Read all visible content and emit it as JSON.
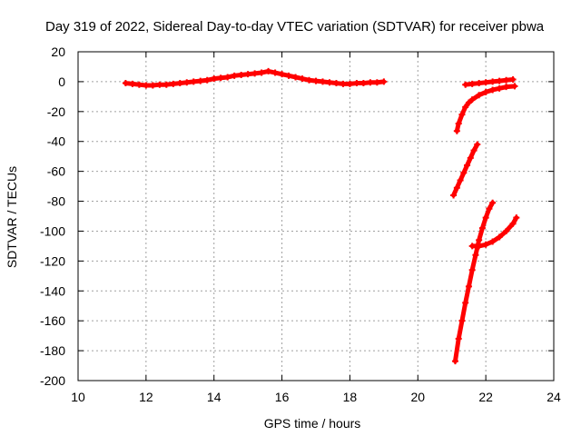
{
  "chart_data": {
    "type": "scatter",
    "title": "Day 319 of 2022, Sidereal Day-to-day VTEC variation (SDTVAR) for receiver pbwa",
    "xlabel": "GPS time / hours",
    "ylabel": "SDTVAR / TECUs",
    "xlim": [
      10,
      24
    ],
    "ylim": [
      -200,
      20
    ],
    "xticks": [
      10,
      12,
      14,
      16,
      18,
      20,
      22,
      24
    ],
    "yticks": [
      20,
      0,
      -20,
      -40,
      -60,
      -80,
      -100,
      -120,
      -140,
      -160,
      -180,
      -200
    ],
    "grid": true,
    "marker": "+",
    "color": "#ff0000",
    "series": [
      {
        "x": [
          11.4,
          11.6,
          11.8,
          12.0,
          12.2,
          12.4,
          12.6,
          12.8,
          13.0,
          13.2,
          13.4,
          13.6,
          13.8,
          14.0,
          14.2,
          14.4,
          14.6,
          14.8,
          15.0,
          15.2,
          15.4,
          15.6,
          15.8,
          16.0,
          16.2,
          16.4,
          16.6,
          16.8,
          17.0,
          17.2,
          17.4,
          17.6,
          17.8,
          18.0,
          18.2,
          18.4,
          18.6,
          18.8,
          19.0
        ],
        "y": [
          -1,
          -1.5,
          -2,
          -2.5,
          -2.5,
          -2,
          -2,
          -1.5,
          -1,
          -0.5,
          0,
          0.5,
          1,
          2,
          2.5,
          3,
          4,
          4.5,
          5,
          5.5,
          6,
          7,
          6,
          5,
          4,
          3,
          2,
          1,
          0.5,
          0,
          -0.5,
          -1,
          -1.5,
          -1.5,
          -1,
          -1,
          -0.5,
          -0.5,
          0
        ]
      },
      {
        "x": [
          21.4,
          21.6,
          21.8,
          22.0,
          22.2,
          22.4,
          22.6,
          22.8
        ],
        "y": [
          -2,
          -1.5,
          -1,
          -0.5,
          0,
          0.5,
          1,
          1.5
        ]
      },
      {
        "x": [
          21.15,
          21.2,
          21.3,
          21.4,
          21.5,
          21.6,
          21.8,
          22.0,
          22.2,
          22.4,
          22.6,
          22.85
        ],
        "y": [
          -33,
          -28,
          -22,
          -17,
          -14,
          -12,
          -9,
          -7,
          -5.5,
          -4.5,
          -3.5,
          -3
        ]
      },
      {
        "x": [
          21.05,
          21.15,
          21.25,
          21.35,
          21.45,
          21.55,
          21.65,
          21.75
        ],
        "y": [
          -76,
          -71,
          -66,
          -61,
          -56,
          -51,
          -46,
          -42
        ]
      },
      {
        "x": [
          21.1,
          21.2,
          21.3,
          21.4,
          21.5,
          21.6,
          21.7,
          21.8,
          21.9,
          22.0,
          22.1,
          22.2
        ],
        "y": [
          -187,
          -172,
          -160,
          -148,
          -137,
          -126,
          -116,
          -106,
          -98,
          -91,
          -85,
          -81
        ]
      },
      {
        "x": [
          21.6,
          21.8,
          22.0,
          22.2,
          22.4,
          22.6,
          22.8,
          22.9
        ],
        "y": [
          -110,
          -110,
          -109,
          -107,
          -104,
          -100,
          -95,
          -91
        ]
      }
    ]
  }
}
